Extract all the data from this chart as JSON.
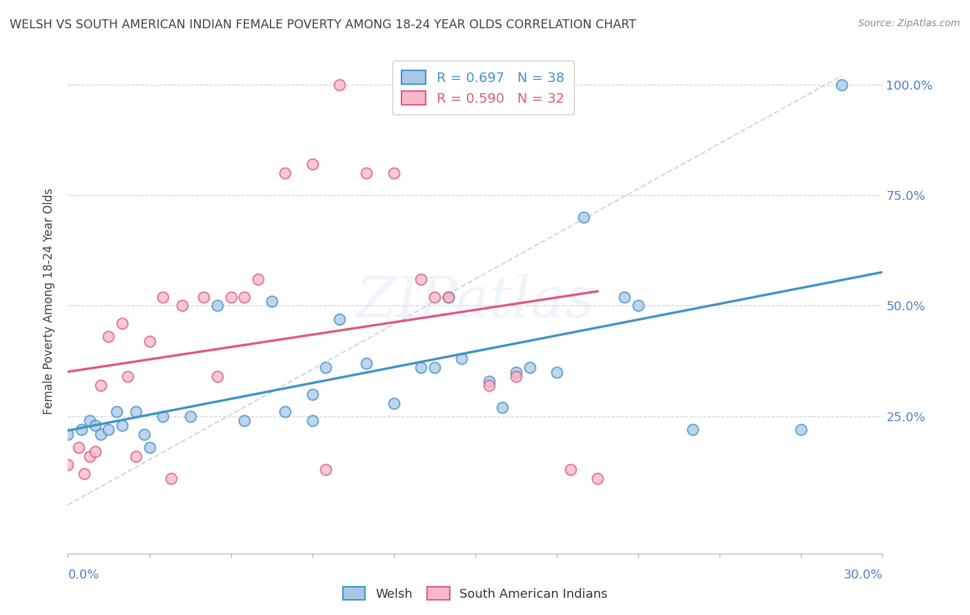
{
  "title": "WELSH VS SOUTH AMERICAN INDIAN FEMALE POVERTY AMONG 18-24 YEAR OLDS CORRELATION CHART",
  "source": "Source: ZipAtlas.com",
  "ylabel": "Female Poverty Among 18-24 Year Olds",
  "welsh_color": "#a8c8e8",
  "welsh_edge_color": "#4292c6",
  "sa_color": "#f4b8c8",
  "sa_edge_color": "#e05880",
  "welsh_line_color": "#4292c6",
  "sa_line_color": "#e05880",
  "ref_line_color": "#c8d4dc",
  "welsh_R": "0.697",
  "welsh_N": "38",
  "sa_R": "0.590",
  "sa_N": "32",
  "watermark": "ZIPatlas",
  "axis_label_color": "#5080c0",
  "title_color": "#404040",
  "xmin": 0.0,
  "xmax": 0.3,
  "ymin": -0.06,
  "ymax": 1.08,
  "welsh_x": [
    0.0,
    0.005,
    0.008,
    0.01,
    0.012,
    0.015,
    0.018,
    0.02,
    0.025,
    0.028,
    0.03,
    0.035,
    0.045,
    0.055,
    0.065,
    0.075,
    0.08,
    0.09,
    0.09,
    0.095,
    0.1,
    0.11,
    0.12,
    0.13,
    0.135,
    0.14,
    0.145,
    0.155,
    0.16,
    0.165,
    0.17,
    0.18,
    0.19,
    0.205,
    0.21,
    0.23,
    0.27,
    0.285
  ],
  "welsh_y": [
    0.21,
    0.22,
    0.24,
    0.23,
    0.21,
    0.22,
    0.26,
    0.23,
    0.26,
    0.21,
    0.18,
    0.25,
    0.25,
    0.5,
    0.24,
    0.51,
    0.26,
    0.3,
    0.24,
    0.36,
    0.47,
    0.37,
    0.28,
    0.36,
    0.36,
    0.52,
    0.38,
    0.33,
    0.27,
    0.35,
    0.36,
    0.35,
    0.7,
    0.52,
    0.5,
    0.22,
    0.22,
    1.0
  ],
  "sa_x": [
    0.0,
    0.004,
    0.006,
    0.008,
    0.01,
    0.012,
    0.015,
    0.02,
    0.022,
    0.025,
    0.03,
    0.035,
    0.038,
    0.042,
    0.05,
    0.055,
    0.06,
    0.065,
    0.07,
    0.08,
    0.09,
    0.095,
    0.1,
    0.11,
    0.12,
    0.13,
    0.135,
    0.14,
    0.155,
    0.165,
    0.185,
    0.195
  ],
  "sa_y": [
    0.14,
    0.18,
    0.12,
    0.16,
    0.17,
    0.32,
    0.43,
    0.46,
    0.34,
    0.16,
    0.42,
    0.52,
    0.11,
    0.5,
    0.52,
    0.34,
    0.52,
    0.52,
    0.56,
    0.8,
    0.82,
    0.13,
    1.0,
    0.8,
    0.8,
    0.56,
    0.52,
    0.52,
    0.32,
    0.34,
    0.13,
    0.11
  ]
}
